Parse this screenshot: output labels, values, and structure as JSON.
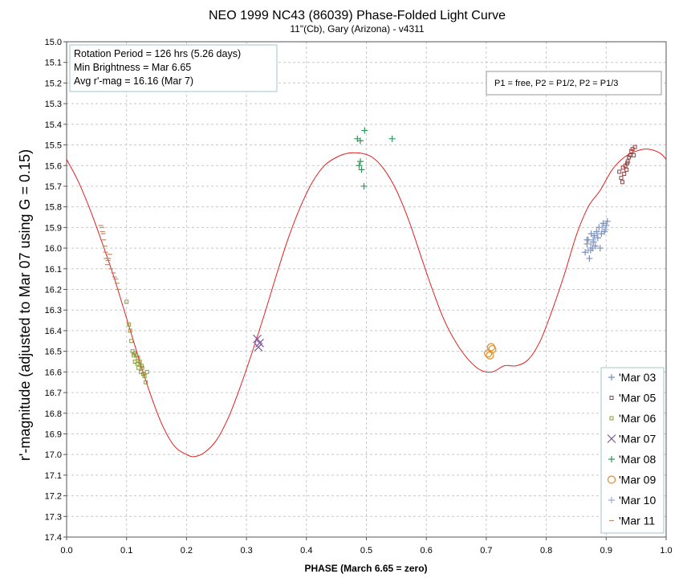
{
  "chart_data": {
    "type": "scatter",
    "title": "NEO 1999 NC43 (86039) Phase-Folded Light Curve",
    "subtitle": "11\"(Cb), Gary (Arizona) - v4311",
    "xlabel": "PHASE (March 6.65 = zero)",
    "ylabel": "r'-magnitude  (adjusted to Mar 07 using G = 0.15)",
    "xlim": [
      0.0,
      1.0
    ],
    "ylim": [
      15.0,
      17.4
    ],
    "y_inverted": true,
    "grid": true,
    "x_ticks": [
      "0.0",
      "0.1",
      "0.2",
      "0.3",
      "0.4",
      "0.5",
      "0.6",
      "0.7",
      "0.8",
      "0.9",
      "1.0"
    ],
    "y_ticks": [
      "15.0",
      "15.1",
      "15.2",
      "15.3",
      "15.4",
      "15.5",
      "15.6",
      "15.7",
      "15.8",
      "15.9",
      "16.0",
      "16.1",
      "16.2",
      "16.3",
      "16.4",
      "16.5",
      "16.6",
      "16.7",
      "16.8",
      "16.9",
      "17.0",
      "17.1",
      "17.2",
      "17.3",
      "17.4"
    ],
    "info_box": [
      "Rotation Period = 126 hrs (5.26 days)",
      "Min Brightness = Mar 6.65",
      "Avg r'-mag = 16.16 (Mar 7)"
    ],
    "note": "P1 = free, P2 = P1/2, P2 = P1/3",
    "legend_position": "bottom-right",
    "fit_curve": {
      "color": "#e02020",
      "points": [
        [
          0.0,
          15.57
        ],
        [
          0.02,
          15.68
        ],
        [
          0.04,
          15.82
        ],
        [
          0.06,
          15.98
        ],
        [
          0.08,
          16.15
        ],
        [
          0.1,
          16.34
        ],
        [
          0.12,
          16.53
        ],
        [
          0.14,
          16.71
        ],
        [
          0.16,
          16.86
        ],
        [
          0.18,
          16.96
        ],
        [
          0.2,
          17.0
        ],
        [
          0.213,
          17.01
        ],
        [
          0.23,
          16.99
        ],
        [
          0.25,
          16.93
        ],
        [
          0.27,
          16.82
        ],
        [
          0.29,
          16.67
        ],
        [
          0.31,
          16.5
        ],
        [
          0.33,
          16.32
        ],
        [
          0.35,
          16.13
        ],
        [
          0.37,
          15.95
        ],
        [
          0.39,
          15.8
        ],
        [
          0.41,
          15.68
        ],
        [
          0.43,
          15.6
        ],
        [
          0.45,
          15.56
        ],
        [
          0.47,
          15.54
        ],
        [
          0.49,
          15.54
        ],
        [
          0.51,
          15.56
        ],
        [
          0.53,
          15.62
        ],
        [
          0.55,
          15.72
        ],
        [
          0.57,
          15.86
        ],
        [
          0.59,
          16.03
        ],
        [
          0.61,
          16.2
        ],
        [
          0.63,
          16.35
        ],
        [
          0.65,
          16.46
        ],
        [
          0.67,
          16.54
        ],
        [
          0.69,
          16.59
        ],
        [
          0.71,
          16.6
        ],
        [
          0.73,
          16.57
        ],
        [
          0.75,
          16.57
        ],
        [
          0.77,
          16.54
        ],
        [
          0.79,
          16.45
        ],
        [
          0.81,
          16.3
        ],
        [
          0.83,
          16.13
        ],
        [
          0.85,
          15.94
        ],
        [
          0.87,
          15.8
        ],
        [
          0.89,
          15.72
        ],
        [
          0.91,
          15.62
        ],
        [
          0.93,
          15.56
        ],
        [
          0.95,
          15.53
        ],
        [
          0.97,
          15.52
        ],
        [
          0.99,
          15.54
        ],
        [
          1.0,
          15.57
        ]
      ]
    },
    "series": [
      {
        "name": "'Mar 03",
        "marker": "plus",
        "color": "#7a8fb8",
        "points": [
          [
            0.865,
            16.02
          ],
          [
            0.868,
            15.98
          ],
          [
            0.87,
            15.96
          ],
          [
            0.872,
            16.05
          ],
          [
            0.875,
            15.93
          ],
          [
            0.877,
            16.0
          ],
          [
            0.879,
            15.97
          ],
          [
            0.88,
            15.94
          ],
          [
            0.882,
            15.99
          ],
          [
            0.884,
            15.92
          ],
          [
            0.886,
            15.95
          ],
          [
            0.888,
            15.9
          ],
          [
            0.89,
            16.0
          ],
          [
            0.892,
            15.93
          ],
          [
            0.895,
            15.88
          ],
          [
            0.897,
            15.92
          ],
          [
            0.9,
            15.89
          ],
          [
            0.902,
            15.87
          ],
          [
            0.868,
            15.96
          ],
          [
            0.874,
            16.01
          ]
        ]
      },
      {
        "name": "'Mar 05",
        "marker": "square",
        "color": "#9b3b3b",
        "points": [
          [
            0.922,
            15.63
          ],
          [
            0.925,
            15.66
          ],
          [
            0.928,
            15.61
          ],
          [
            0.93,
            15.64
          ],
          [
            0.932,
            15.6
          ],
          [
            0.934,
            15.62
          ],
          [
            0.936,
            15.58
          ],
          [
            0.938,
            15.56
          ],
          [
            0.94,
            15.55
          ],
          [
            0.942,
            15.53
          ],
          [
            0.944,
            15.52
          ],
          [
            0.946,
            15.55
          ],
          [
            0.935,
            15.59
          ],
          [
            0.927,
            15.68
          ],
          [
            0.948,
            15.51
          ]
        ]
      },
      {
        "name": "'Mar 06",
        "marker": "square",
        "color": "#8a9a3a",
        "points": [
          [
            0.1,
            16.26
          ],
          [
            0.104,
            16.37
          ],
          [
            0.106,
            16.4
          ],
          [
            0.108,
            16.45
          ],
          [
            0.11,
            16.5
          ],
          [
            0.112,
            16.52
          ],
          [
            0.114,
            16.55
          ],
          [
            0.116,
            16.52
          ],
          [
            0.118,
            16.56
          ],
          [
            0.12,
            16.58
          ],
          [
            0.122,
            16.55
          ],
          [
            0.124,
            16.6
          ],
          [
            0.126,
            16.58
          ],
          [
            0.128,
            16.61
          ],
          [
            0.13,
            16.62
          ],
          [
            0.132,
            16.65
          ],
          [
            0.134,
            16.6
          ],
          [
            0.119,
            16.53
          ],
          [
            0.125,
            16.57
          ],
          [
            0.113,
            16.51
          ]
        ]
      },
      {
        "name": "'Mar 07",
        "marker": "x",
        "color": "#7a5aa0",
        "points": [
          [
            0.318,
            16.44
          ],
          [
            0.322,
            16.46
          ],
          [
            0.32,
            16.48
          ]
        ]
      },
      {
        "name": "'Mar 08",
        "marker": "plus",
        "color": "#2a9a5a",
        "points": [
          [
            0.485,
            15.47
          ],
          [
            0.49,
            15.48
          ],
          [
            0.497,
            15.43
          ],
          [
            0.488,
            15.6
          ],
          [
            0.492,
            15.62
          ],
          [
            0.49,
            15.58
          ],
          [
            0.496,
            15.7
          ],
          [
            0.543,
            15.47
          ]
        ]
      },
      {
        "name": "'Mar 09",
        "marker": "circle",
        "color": "#e08a2a",
        "points": [
          [
            0.703,
            16.51
          ],
          [
            0.706,
            16.52
          ],
          [
            0.708,
            16.48
          ],
          [
            0.71,
            16.49
          ]
        ]
      },
      {
        "name": "'Mar 10",
        "marker": "plus",
        "color": "#9aaad8",
        "points": [
          [
            0.87,
            16.01
          ],
          [
            0.878,
            15.96
          ],
          [
            0.885,
            15.93
          ],
          [
            0.893,
            15.9
          ],
          [
            0.899,
            15.91
          ],
          [
            0.874,
            15.98
          ]
        ]
      },
      {
        "name": "'Mar 11",
        "marker": "dash",
        "color": "#c08a6a",
        "points": [
          [
            0.057,
            15.89
          ],
          [
            0.059,
            15.9
          ],
          [
            0.061,
            15.93
          ],
          [
            0.062,
            15.96
          ],
          [
            0.064,
            15.99
          ],
          [
            0.066,
            16.05
          ],
          [
            0.068,
            16.08
          ],
          [
            0.07,
            16.05
          ],
          [
            0.072,
            16.03
          ],
          [
            0.074,
            16.1
          ],
          [
            0.078,
            16.12
          ],
          [
            0.08,
            16.14
          ],
          [
            0.082,
            16.15
          ],
          [
            0.084,
            16.17
          ],
          [
            0.086,
            16.2
          ],
          [
            0.06,
            15.92
          ],
          [
            0.065,
            16.02
          ],
          [
            0.069,
            16.06
          ]
        ]
      }
    ]
  }
}
